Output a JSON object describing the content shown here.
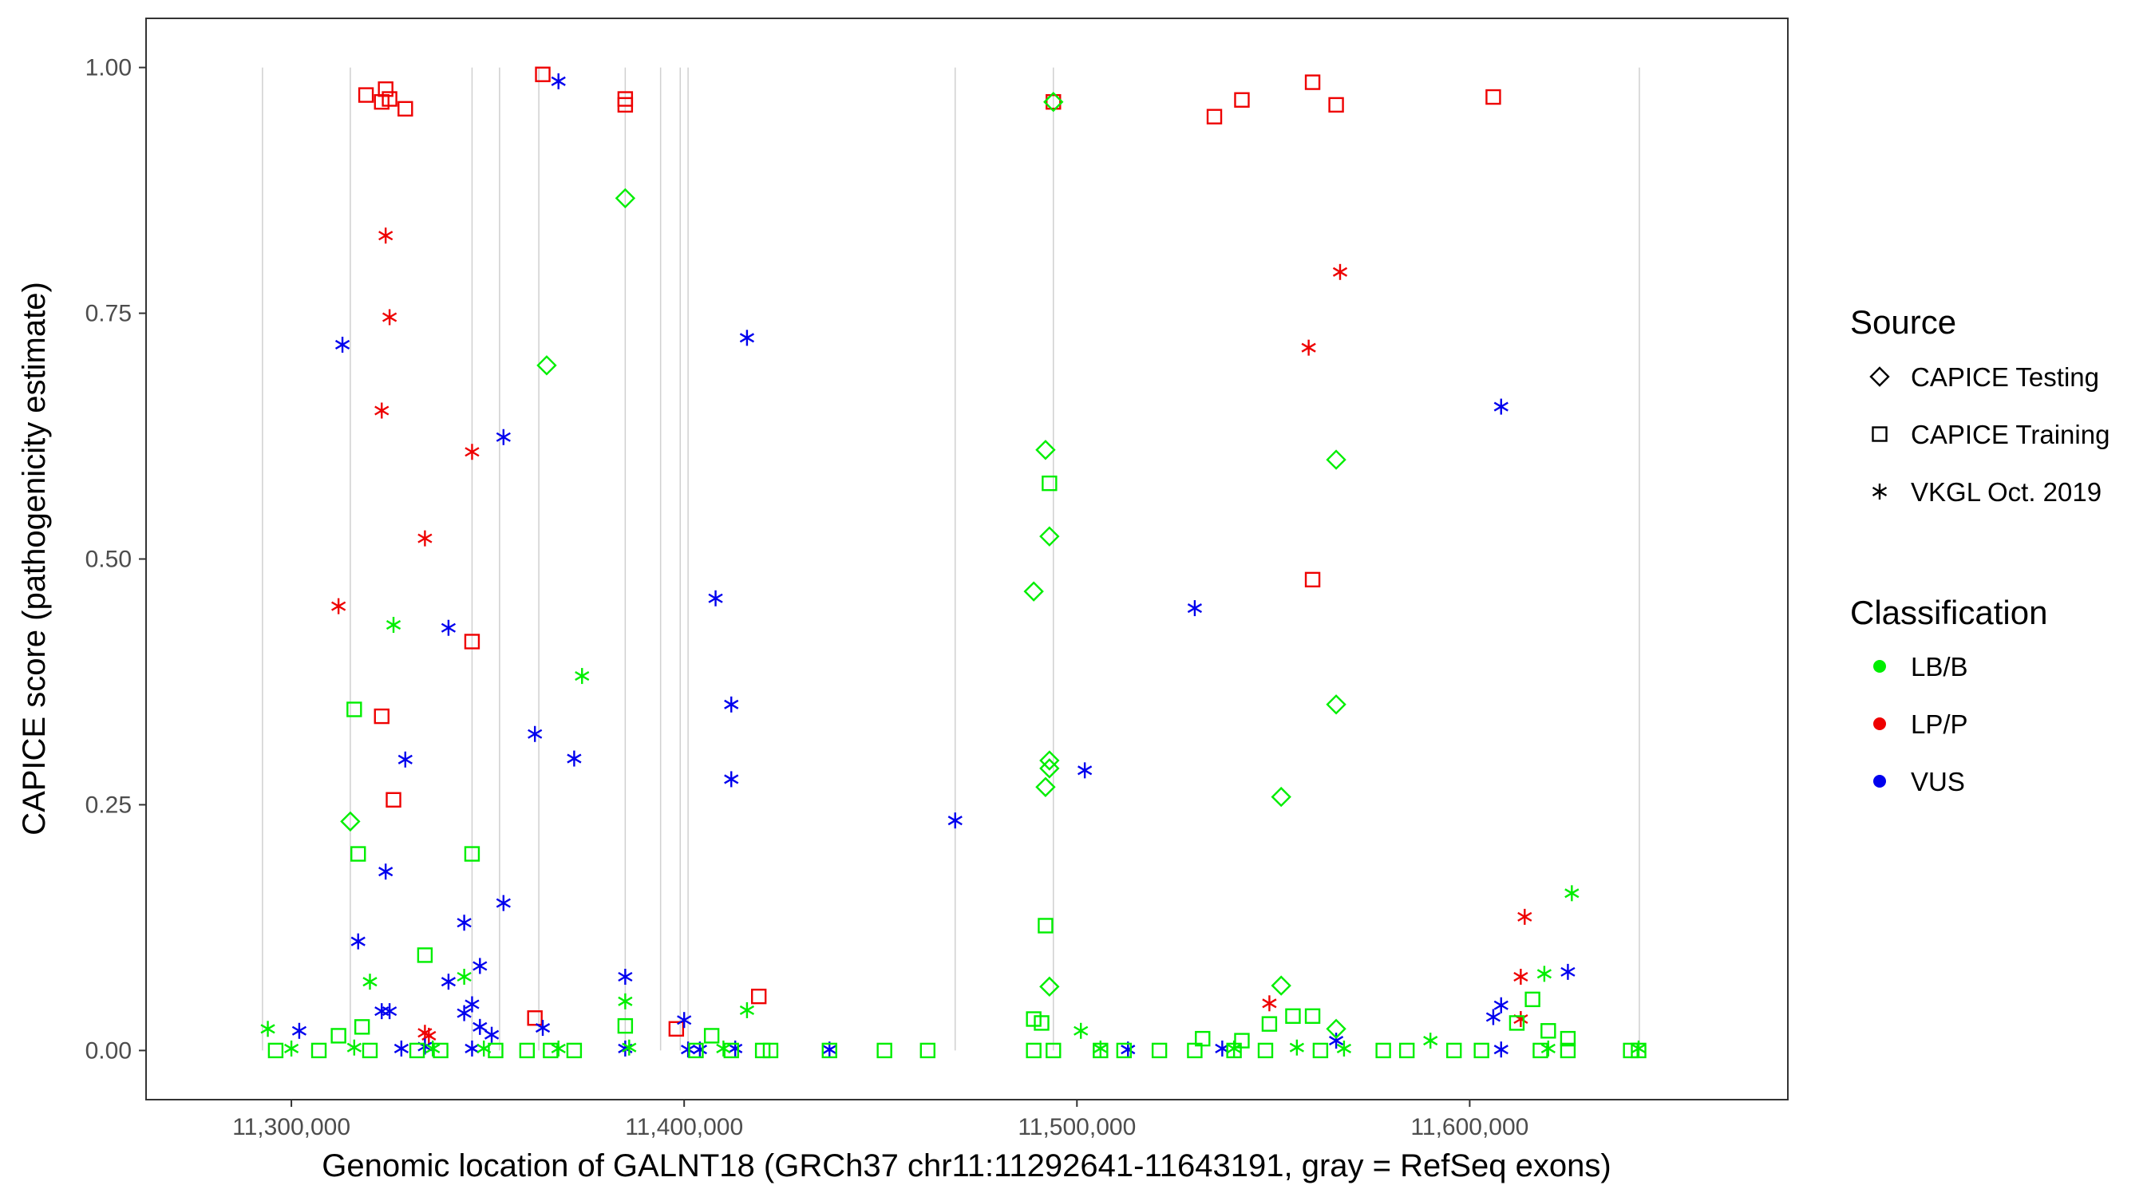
{
  "chart_data": {
    "type": "scatter",
    "xlabel": "Genomic location of GALNT18 (GRCh37 chr11:11292641-11643191, gray = RefSeq exons)",
    "ylabel": "CAPICE score (pathogenicity estimate)",
    "xlim": [
      11263000,
      11681000
    ],
    "ylim": [
      -0.05,
      1.05
    ],
    "x_ticks": [
      11300000,
      11400000,
      11500000,
      11600000
    ],
    "x_tick_labels": [
      "11,300,000",
      "11,400,000",
      "11,500,000",
      "11,600,000"
    ],
    "y_ticks": [
      0,
      0.25,
      0.5,
      0.75,
      1.0
    ],
    "y_tick_labels": [
      "0.00",
      "0.25",
      "0.50",
      "0.75",
      "1.00"
    ],
    "grid": false,
    "exons": [
      11292641,
      11315000,
      11346000,
      11353000,
      11363000,
      11385000,
      11394000,
      11399000,
      11401000,
      11469000,
      11494000,
      11643191
    ],
    "legend": {
      "placement": "right",
      "source_title": "Source",
      "source_items": [
        {
          "label": "CAPICE Testing",
          "shape": "diamond"
        },
        {
          "label": "CAPICE Training",
          "shape": "square"
        },
        {
          "label": "VKGL Oct. 2019",
          "shape": "asterisk"
        }
      ],
      "class_title": "Classification",
      "class_items": [
        {
          "label": "LB/B",
          "color": "#00ee00"
        },
        {
          "label": "LP/P",
          "color": "#ee0000"
        },
        {
          "label": "VUS",
          "color": "#0000ee"
        }
      ]
    },
    "colors": {
      "LB/B": "#00ee00",
      "LP/P": "#ee0000",
      "VUS": "#0000ee"
    },
    "series": [
      {
        "name": "LP/P",
        "points": [
          [
            11319000,
            0.972,
            "square"
          ],
          [
            11323000,
            0.965,
            "square"
          ],
          [
            11324000,
            0.978,
            "square"
          ],
          [
            11325000,
            0.968,
            "square"
          ],
          [
            11329000,
            0.958,
            "square"
          ],
          [
            11364000,
            0.993,
            "square"
          ],
          [
            11385000,
            0.968,
            "square"
          ],
          [
            11385000,
            0.962,
            "square"
          ],
          [
            11494000,
            0.965,
            "square"
          ],
          [
            11535000,
            0.95,
            "square"
          ],
          [
            11542000,
            0.967,
            "square"
          ],
          [
            11560000,
            0.985,
            "square"
          ],
          [
            11566000,
            0.962,
            "square"
          ],
          [
            11606000,
            0.97,
            "square"
          ],
          [
            11346000,
            0.416,
            "square"
          ],
          [
            11323000,
            0.34,
            "square"
          ],
          [
            11326000,
            0.255,
            "square"
          ],
          [
            11560000,
            0.479,
            "square"
          ],
          [
            11419000,
            0.055,
            "square"
          ],
          [
            11398000,
            0.022,
            "square"
          ],
          [
            11362000,
            0.033,
            "square"
          ],
          [
            11324000,
            0.829,
            "asterisk"
          ],
          [
            11325000,
            0.746,
            "asterisk"
          ],
          [
            11323000,
            0.651,
            "asterisk"
          ],
          [
            11346000,
            0.609,
            "asterisk"
          ],
          [
            11334000,
            0.521,
            "asterisk"
          ],
          [
            11312000,
            0.452,
            "asterisk"
          ],
          [
            11567000,
            0.792,
            "asterisk"
          ],
          [
            11559000,
            0.715,
            "asterisk"
          ],
          [
            11614000,
            0.136,
            "asterisk"
          ],
          [
            11613000,
            0.075,
            "asterisk"
          ],
          [
            11549000,
            0.048,
            "asterisk"
          ],
          [
            11613000,
            0.032,
            "asterisk"
          ],
          [
            11334000,
            0.018,
            "asterisk"
          ],
          [
            11335000,
            0.015,
            "asterisk"
          ]
        ]
      },
      {
        "name": "VUS",
        "points": [
          [
            11368000,
            0.986,
            "asterisk"
          ],
          [
            11313000,
            0.718,
            "asterisk"
          ],
          [
            11416000,
            0.725,
            "asterisk"
          ],
          [
            11354000,
            0.624,
            "asterisk"
          ],
          [
            11608000,
            0.655,
            "asterisk"
          ],
          [
            11408000,
            0.46,
            "asterisk"
          ],
          [
            11340000,
            0.43,
            "asterisk"
          ],
          [
            11530000,
            0.45,
            "asterisk"
          ],
          [
            11412000,
            0.352,
            "asterisk"
          ],
          [
            11362000,
            0.322,
            "asterisk"
          ],
          [
            11372000,
            0.297,
            "asterisk"
          ],
          [
            11329000,
            0.296,
            "asterisk"
          ],
          [
            11502000,
            0.285,
            "asterisk"
          ],
          [
            11412000,
            0.276,
            "asterisk"
          ],
          [
            11469000,
            0.234,
            "asterisk"
          ],
          [
            11324000,
            0.182,
            "asterisk"
          ],
          [
            11354000,
            0.15,
            "asterisk"
          ],
          [
            11344000,
            0.13,
            "asterisk"
          ],
          [
            11317000,
            0.111,
            "asterisk"
          ],
          [
            11348000,
            0.086,
            "asterisk"
          ],
          [
            11625000,
            0.08,
            "asterisk"
          ],
          [
            11385000,
            0.075,
            "asterisk"
          ],
          [
            11340000,
            0.07,
            "asterisk"
          ],
          [
            11346000,
            0.047,
            "asterisk"
          ],
          [
            11608000,
            0.046,
            "asterisk"
          ],
          [
            11323000,
            0.04,
            "asterisk"
          ],
          [
            11325000,
            0.04,
            "asterisk"
          ],
          [
            11344000,
            0.038,
            "asterisk"
          ],
          [
            11400000,
            0.031,
            "asterisk"
          ],
          [
            11606000,
            0.034,
            "asterisk"
          ],
          [
            11348000,
            0.024,
            "asterisk"
          ],
          [
            11364000,
            0.023,
            "asterisk"
          ],
          [
            11302000,
            0.02,
            "asterisk"
          ],
          [
            11351000,
            0.016,
            "asterisk"
          ],
          [
            11566000,
            0.01,
            "asterisk"
          ],
          [
            11334000,
            0.004,
            "asterisk"
          ],
          [
            11385000,
            0.002,
            "asterisk"
          ],
          [
            11401000,
            0.001,
            "asterisk"
          ],
          [
            11404000,
            0.001,
            "asterisk"
          ],
          [
            11413000,
            0.002,
            "asterisk"
          ],
          [
            11437000,
            0.001,
            "asterisk"
          ],
          [
            11513000,
            0.001,
            "asterisk"
          ],
          [
            11537000,
            0.002,
            "asterisk"
          ],
          [
            11608000,
            0.001,
            "asterisk"
          ],
          [
            11346000,
            0.002,
            "asterisk"
          ],
          [
            11328000,
            0.002,
            "asterisk"
          ]
        ]
      },
      {
        "name": "LB/B",
        "points": [
          [
            11385000,
            0.867,
            "diamond"
          ],
          [
            11365000,
            0.697,
            "diamond"
          ],
          [
            11494000,
            0.965,
            "diamond"
          ],
          [
            11492000,
            0.611,
            "diamond"
          ],
          [
            11566000,
            0.601,
            "diamond"
          ],
          [
            11493000,
            0.523,
            "diamond"
          ],
          [
            11489000,
            0.467,
            "diamond"
          ],
          [
            11566000,
            0.352,
            "diamond"
          ],
          [
            11493000,
            0.295,
            "diamond"
          ],
          [
            11493000,
            0.287,
            "diamond"
          ],
          [
            11492000,
            0.268,
            "diamond"
          ],
          [
            11552000,
            0.258,
            "diamond"
          ],
          [
            11315000,
            0.233,
            "diamond"
          ],
          [
            11493000,
            0.065,
            "diamond"
          ],
          [
            11552000,
            0.066,
            "diamond"
          ],
          [
            11566000,
            0.022,
            "diamond"
          ],
          [
            11493000,
            0.577,
            "square"
          ],
          [
            11316000,
            0.347,
            "square"
          ],
          [
            11317000,
            0.2,
            "square"
          ],
          [
            11346000,
            0.2,
            "square"
          ],
          [
            11492000,
            0.127,
            "square"
          ],
          [
            11334000,
            0.097,
            "square"
          ],
          [
            11616000,
            0.052,
            "square"
          ],
          [
            11489000,
            0.032,
            "square"
          ],
          [
            11385000,
            0.025,
            "square"
          ],
          [
            11491000,
            0.028,
            "square"
          ],
          [
            11549000,
            0.027,
            "square"
          ],
          [
            11612000,
            0.028,
            "square"
          ],
          [
            11620000,
            0.02,
            "square"
          ],
          [
            11407000,
            0.015,
            "square"
          ],
          [
            11555000,
            0.035,
            "square"
          ],
          [
            11560000,
            0.035,
            "square"
          ],
          [
            11532000,
            0.012,
            "square"
          ],
          [
            11542000,
            0.01,
            "square"
          ],
          [
            11625000,
            0.012,
            "square"
          ],
          [
            11312000,
            0.015,
            "square"
          ],
          [
            11318000,
            0.024,
            "square"
          ],
          [
            11296000,
            0.0,
            "square"
          ],
          [
            11307000,
            0.0,
            "square"
          ],
          [
            11320000,
            0.0,
            "square"
          ],
          [
            11332000,
            0.0,
            "square"
          ],
          [
            11338000,
            0.0,
            "square"
          ],
          [
            11352000,
            0.0,
            "square"
          ],
          [
            11360000,
            0.0,
            "square"
          ],
          [
            11366000,
            0.0,
            "square"
          ],
          [
            11372000,
            0.0,
            "square"
          ],
          [
            11403000,
            0.0,
            "square"
          ],
          [
            11412000,
            0.0,
            "square"
          ],
          [
            11420000,
            0.0,
            "square"
          ],
          [
            11422000,
            0.0,
            "square"
          ],
          [
            11437000,
            0.0,
            "square"
          ],
          [
            11451000,
            0.0,
            "square"
          ],
          [
            11462000,
            0.0,
            "square"
          ],
          [
            11489000,
            0.0,
            "square"
          ],
          [
            11494000,
            0.0,
            "square"
          ],
          [
            11506000,
            0.0,
            "square"
          ],
          [
            11512000,
            0.0,
            "square"
          ],
          [
            11521000,
            0.0,
            "square"
          ],
          [
            11530000,
            0.0,
            "square"
          ],
          [
            11540000,
            0.0,
            "square"
          ],
          [
            11548000,
            0.0,
            "square"
          ],
          [
            11562000,
            0.0,
            "square"
          ],
          [
            11578000,
            0.0,
            "square"
          ],
          [
            11584000,
            0.0,
            "square"
          ],
          [
            11596000,
            0.0,
            "square"
          ],
          [
            11603000,
            0.0,
            "square"
          ],
          [
            11618000,
            0.0,
            "square"
          ],
          [
            11625000,
            0.0,
            "square"
          ],
          [
            11643000,
            0.0,
            "square"
          ],
          [
            11641000,
            0.0,
            "square"
          ],
          [
            11326000,
            0.433,
            "asterisk"
          ],
          [
            11374000,
            0.381,
            "asterisk"
          ],
          [
            11626000,
            0.16,
            "asterisk"
          ],
          [
            11344000,
            0.075,
            "asterisk"
          ],
          [
            11619000,
            0.078,
            "asterisk"
          ],
          [
            11320000,
            0.07,
            "asterisk"
          ],
          [
            11385000,
            0.05,
            "asterisk"
          ],
          [
            11416000,
            0.041,
            "asterisk"
          ],
          [
            11294000,
            0.022,
            "asterisk"
          ],
          [
            11501000,
            0.02,
            "asterisk"
          ],
          [
            11590000,
            0.01,
            "asterisk"
          ],
          [
            11300000,
            0.002,
            "asterisk"
          ],
          [
            11316000,
            0.003,
            "asterisk"
          ],
          [
            11336000,
            0.002,
            "asterisk"
          ],
          [
            11349000,
            0.002,
            "asterisk"
          ],
          [
            11368000,
            0.002,
            "asterisk"
          ],
          [
            11386000,
            0.003,
            "asterisk"
          ],
          [
            11410000,
            0.002,
            "asterisk"
          ],
          [
            11506000,
            0.002,
            "asterisk"
          ],
          [
            11540000,
            0.002,
            "asterisk"
          ],
          [
            11556000,
            0.003,
            "asterisk"
          ],
          [
            11568000,
            0.002,
            "asterisk"
          ],
          [
            11620000,
            0.002,
            "asterisk"
          ],
          [
            11643000,
            0.002,
            "asterisk"
          ]
        ]
      }
    ]
  }
}
